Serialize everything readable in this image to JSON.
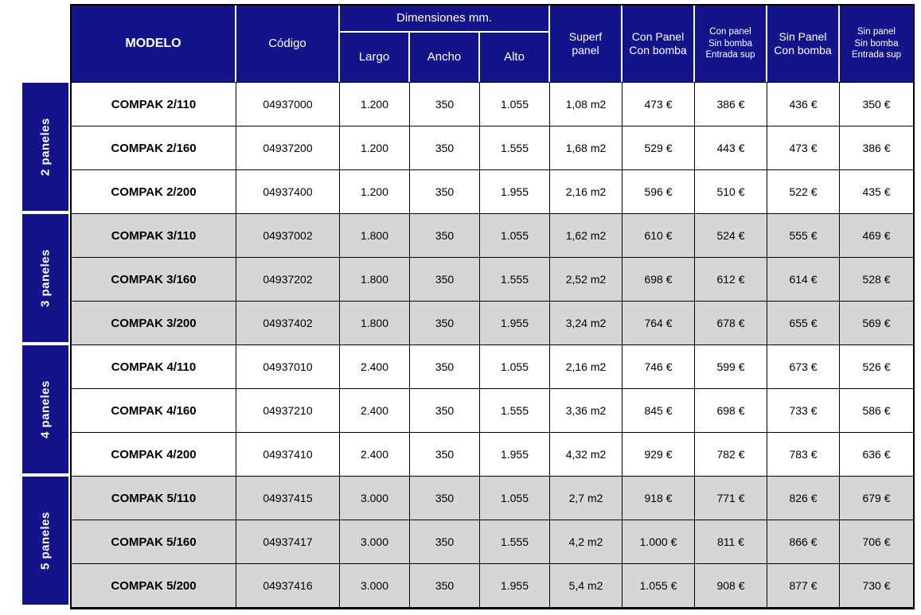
{
  "table": {
    "headers": {
      "modelo": "MODELO",
      "codigo": "Código",
      "dimensiones": "Dimensiones mm.",
      "largo": "Largo",
      "ancho": "Ancho",
      "alto": "Alto",
      "superf": "Superf\npanel",
      "con_panel_con_bomba": "Con Panel\nCon bomba",
      "con_panel_sin_bomba": "Con panel\nSin bomba\nEntrada sup",
      "sin_panel_con_bomba": "Sin Panel\nCon bomba",
      "sin_panel_sin_bomba": "Sin panel\nSin bomba\nEntrada sup"
    },
    "groups": [
      {
        "label": "2 paneles",
        "rows": [
          {
            "modelo": "COMPAK 2/110",
            "codigo": "04937000",
            "largo": "1.200",
            "ancho": "350",
            "alto": "1.055",
            "superf": "1,08 m2",
            "con_panel_con_bomba": "473 €",
            "con_panel_sin_bomba": "386 €",
            "sin_panel_con_bomba": "436 €",
            "sin_panel_sin_bomba": "350 €"
          },
          {
            "modelo": "COMPAK 2/160",
            "codigo": "04937200",
            "largo": "1.200",
            "ancho": "350",
            "alto": "1.555",
            "superf": "1,68 m2",
            "con_panel_con_bomba": "529 €",
            "con_panel_sin_bomba": "443 €",
            "sin_panel_con_bomba": "473 €",
            "sin_panel_sin_bomba": "386 €"
          },
          {
            "modelo": "COMPAK 2/200",
            "codigo": "04937400",
            "largo": "1.200",
            "ancho": "350",
            "alto": "1.955",
            "superf": "2,16 m2",
            "con_panel_con_bomba": "596 €",
            "con_panel_sin_bomba": "510 €",
            "sin_panel_con_bomba": "522 €",
            "sin_panel_sin_bomba": "435 €"
          }
        ]
      },
      {
        "label": "3 paneles",
        "rows": [
          {
            "modelo": "COMPAK 3/110",
            "codigo": "04937002",
            "largo": "1.800",
            "ancho": "350",
            "alto": "1.055",
            "superf": "1,62 m2",
            "con_panel_con_bomba": "610 €",
            "con_panel_sin_bomba": "524 €",
            "sin_panel_con_bomba": "555 €",
            "sin_panel_sin_bomba": "469 €"
          },
          {
            "modelo": "COMPAK 3/160",
            "codigo": "04937202",
            "largo": "1.800",
            "ancho": "350",
            "alto": "1.555",
            "superf": "2,52 m2",
            "con_panel_con_bomba": "698 €",
            "con_panel_sin_bomba": "612 €",
            "sin_panel_con_bomba": "614 €",
            "sin_panel_sin_bomba": "528 €"
          },
          {
            "modelo": "COMPAK 3/200",
            "codigo": "04937402",
            "largo": "1.800",
            "ancho": "350",
            "alto": "1.955",
            "superf": "3,24 m2",
            "con_panel_con_bomba": "764 €",
            "con_panel_sin_bomba": "678 €",
            "sin_panel_con_bomba": "655 €",
            "sin_panel_sin_bomba": "569 €"
          }
        ]
      },
      {
        "label": "4 paneles",
        "rows": [
          {
            "modelo": "COMPAK 4/110",
            "codigo": "04937010",
            "largo": "2.400",
            "ancho": "350",
            "alto": "1.055",
            "superf": "2,16 m2",
            "con_panel_con_bomba": "746 €",
            "con_panel_sin_bomba": "599 €",
            "sin_panel_con_bomba": "673 €",
            "sin_panel_sin_bomba": "526 €"
          },
          {
            "modelo": "COMPAK 4/160",
            "codigo": "04937210",
            "largo": "2.400",
            "ancho": "350",
            "alto": "1.555",
            "superf": "3,36 m2",
            "con_panel_con_bomba": "845 €",
            "con_panel_sin_bomba": "698 €",
            "sin_panel_con_bomba": "733 €",
            "sin_panel_sin_bomba": "586 €"
          },
          {
            "modelo": "COMPAK 4/200",
            "codigo": "04937410",
            "largo": "2.400",
            "ancho": "350",
            "alto": "1.955",
            "superf": "4,32 m2",
            "con_panel_con_bomba": "929 €",
            "con_panel_sin_bomba": "782 €",
            "sin_panel_con_bomba": "783 €",
            "sin_panel_sin_bomba": "636 €"
          }
        ]
      },
      {
        "label": "5 paneles",
        "rows": [
          {
            "modelo": "COMPAK 5/110",
            "codigo": "04937415",
            "largo": "3.000",
            "ancho": "350",
            "alto": "1.055",
            "superf": "2,7 m2",
            "con_panel_con_bomba": "918 €",
            "con_panel_sin_bomba": "771 €",
            "sin_panel_con_bomba": "826 €",
            "sin_panel_sin_bomba": "679 €"
          },
          {
            "modelo": "COMPAK 5/160",
            "codigo": "04937417",
            "largo": "3.000",
            "ancho": "350",
            "alto": "1.555",
            "superf": "4,2 m2",
            "con_panel_con_bomba": "1.000 €",
            "con_panel_sin_bomba": "811 €",
            "sin_panel_con_bomba": "866 €",
            "sin_panel_sin_bomba": "706 €"
          },
          {
            "modelo": "COMPAK 5/200",
            "codigo": "04937416",
            "largo": "3.000",
            "ancho": "350",
            "alto": "1.955",
            "superf": "5,4 m2",
            "con_panel_con_bomba": "1.055 €",
            "con_panel_sin_bomba": "908 €",
            "sin_panel_con_bomba": "877 €",
            "sin_panel_sin_bomba": "730 €"
          }
        ]
      }
    ]
  },
  "colors": {
    "header_navy": "#14148a",
    "row_gray": "#d6d6d6",
    "border_black": "#000000",
    "header_text": "#ffffff"
  }
}
